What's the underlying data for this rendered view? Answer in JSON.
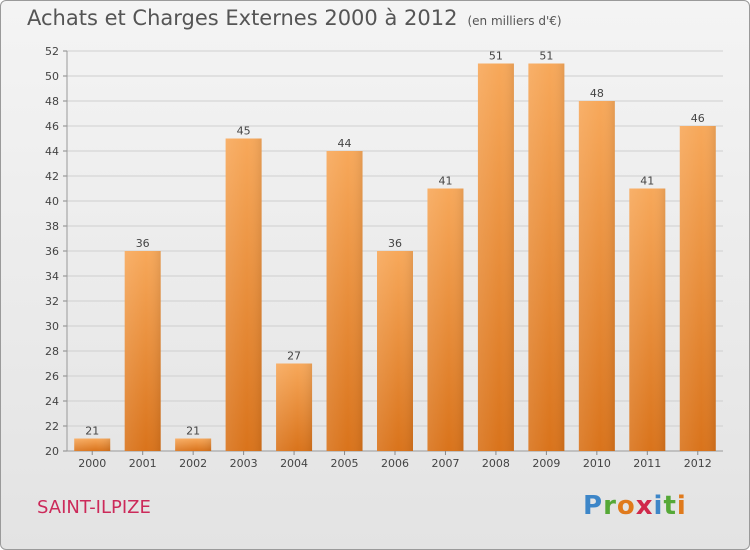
{
  "header": {
    "title": "Achats et Charges Externes 2000 à 2012",
    "unit": "(en milliers d'€)"
  },
  "footer": {
    "city": "SAINT-ILPIZE",
    "logo_letters": [
      "P",
      "r",
      "o",
      "x",
      "i",
      "t",
      "i"
    ]
  },
  "chart_data": {
    "type": "bar",
    "title": "Achats et Charges Externes 2000 à 2012",
    "subtitle": "(en milliers d'€)",
    "categories": [
      "2000",
      "2001",
      "2002",
      "2003",
      "2004",
      "2005",
      "2006",
      "2007",
      "2008",
      "2009",
      "2010",
      "2011",
      "2012"
    ],
    "values": [
      21,
      36,
      21,
      45,
      27,
      44,
      36,
      41,
      51,
      51,
      48,
      41,
      46
    ],
    "ylim": [
      20,
      52
    ],
    "yticks": [
      20,
      22,
      24,
      26,
      28,
      30,
      32,
      34,
      36,
      38,
      40,
      42,
      44,
      46,
      48,
      50,
      52
    ],
    "grid": true,
    "bar_color_top": "#f7a85a",
    "bar_color_bottom": "#d9731b"
  }
}
